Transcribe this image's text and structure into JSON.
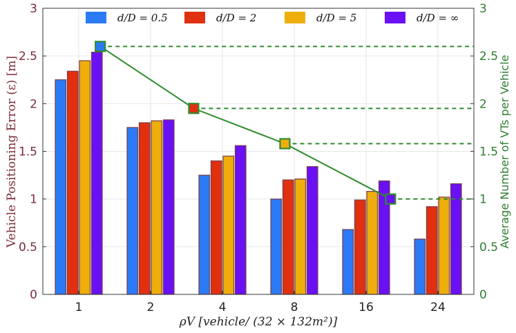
{
  "chart_data": {
    "type": "bar",
    "categories": [
      "1",
      "2",
      "4",
      "8",
      "16",
      "24"
    ],
    "series": [
      {
        "name": "d/D = 0.5",
        "color": "#2b7bf6",
        "values": [
          2.25,
          1.75,
          1.25,
          1.0,
          0.68,
          0.58
        ]
      },
      {
        "name": "d/D = 2",
        "color": "#e03010",
        "values": [
          2.34,
          1.8,
          1.4,
          1.2,
          0.99,
          0.92
        ]
      },
      {
        "name": "d/D = 5",
        "color": "#eeae0c",
        "values": [
          2.45,
          1.82,
          1.45,
          1.21,
          1.08,
          1.02
        ]
      },
      {
        "name": "d/D = ∞",
        "color": "#6a10f4",
        "values": [
          2.54,
          1.83,
          1.56,
          1.34,
          1.19,
          1.16
        ]
      }
    ],
    "ylabel": "Vehicle Positioning Error (ε) [m]",
    "ylim": [
      0,
      3
    ],
    "yticks": [
      "0",
      "0.5",
      "1",
      "1.5",
      "2",
      "2.5",
      "3"
    ],
    "xlabel": "ρV  [vehicle/ (32 × 132m²)]",
    "line_series": {
      "name": "Average Number of VTs per Vehicle",
      "color": "#2e8b2e",
      "x_index": [
        0.3,
        1.6,
        2.87,
        4.34
      ],
      "values": [
        2.6,
        1.95,
        1.58,
        1.0
      ],
      "marker_colors": [
        "#2b7bf6",
        "#e03010",
        "#eeae0c",
        "#6a10f4"
      ]
    },
    "y2label": "Average Number of VTs per Vehicle",
    "y2lim": [
      0,
      3
    ],
    "y2ticks": [
      "0",
      "0.5",
      "1",
      "1.5",
      "2",
      "2.5",
      "3"
    ],
    "grid": true,
    "legend_position": "top"
  }
}
